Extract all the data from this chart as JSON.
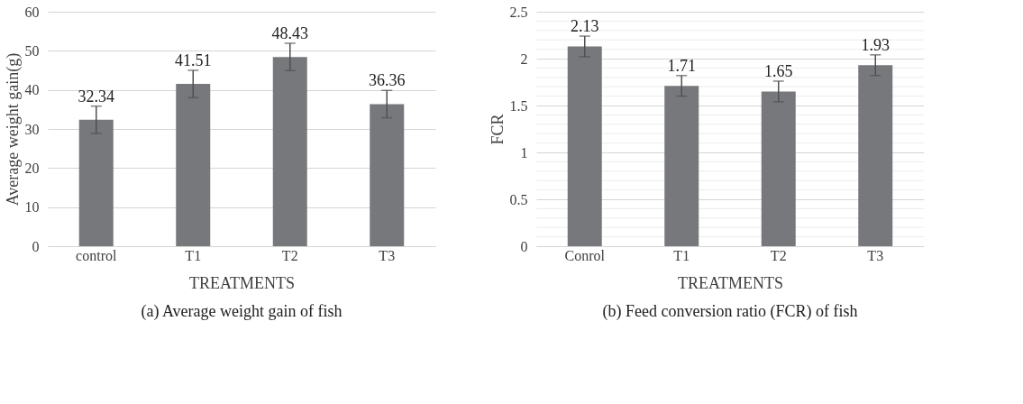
{
  "chart_data": [
    {
      "type": "bar",
      "xlabel": "TREATMENTS",
      "ylabel": "Average weight gain(g)",
      "categories": [
        "control",
        "T1",
        "T2",
        "T3"
      ],
      "series": [
        {
          "color": "#77787b",
          "values": [
            32.34,
            41.51,
            48.43,
            36.36
          ],
          "errors": [
            3.5,
            3.5,
            3.5,
            3.5
          ]
        }
      ],
      "ylim": [
        0,
        60
      ],
      "yticks": [
        0,
        10,
        20,
        30,
        40,
        50,
        60
      ],
      "grid": "y",
      "data_labels": true,
      "annotations": [
        "(a) Average weight gain of fish"
      ]
    },
    {
      "type": "bar",
      "xlabel": "TREATMENTS",
      "ylabel": "FCR",
      "categories": [
        "Conrol",
        "T1",
        "T2",
        "T3"
      ],
      "series": [
        {
          "color": "#77787b",
          "values": [
            2.13,
            1.71,
            1.65,
            1.93
          ],
          "errors": [
            0.11,
            0.11,
            0.11,
            0.11
          ]
        }
      ],
      "ylim": [
        0,
        2.5
      ],
      "yticks": [
        0,
        {
          "value": 0.1,
          "label": null
        },
        {
          "value": 0.2,
          "label": null
        },
        {
          "value": 0.3,
          "label": null
        },
        {
          "value": 0.4,
          "label": null
        },
        0.5,
        {
          "value": 0.6,
          "label": null
        },
        {
          "value": 0.7,
          "label": null
        },
        {
          "value": 0.8,
          "label": null
        },
        {
          "value": 0.9,
          "label": null
        },
        1,
        {
          "value": 1.1,
          "label": null
        },
        {
          "value": 1.2,
          "label": null
        },
        {
          "value": 1.3,
          "label": null
        },
        {
          "value": 1.4,
          "label": null
        },
        1.5,
        {
          "value": 1.6,
          "label": null
        },
        {
          "value": 1.7,
          "label": null
        },
        {
          "value": 1.8,
          "label": null
        },
        {
          "value": 1.9,
          "label": null
        },
        2,
        {
          "value": 2.1,
          "label": null
        },
        {
          "value": 2.2,
          "label": null
        },
        {
          "value": 2.3,
          "label": null
        },
        {
          "value": 2.4,
          "label": null
        },
        2.5
      ],
      "grid": "y",
      "data_labels": true,
      "annotations": [
        "(b) Feed conversion ratio (FCR) of fish"
      ]
    }
  ]
}
